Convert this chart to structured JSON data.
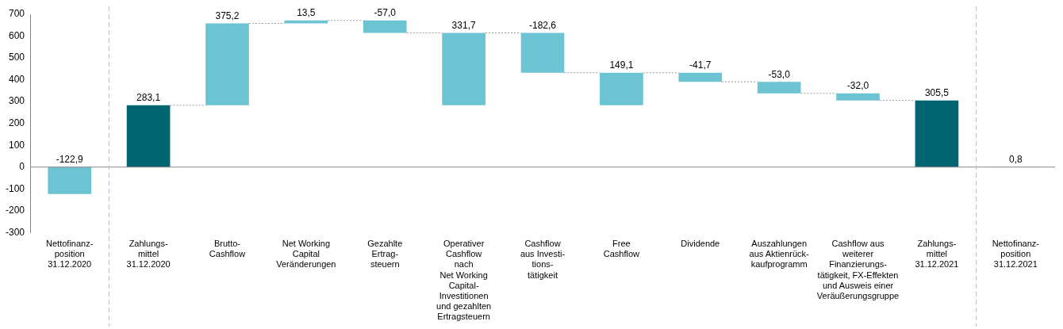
{
  "chart_data": {
    "type": "bar",
    "categories": [
      "Nettofinanz-\nposition\n31.12.2020",
      "Zahlungs-\nmittel\n31.12.2020",
      "Brutto-\nCashflow",
      "Net Working\nCapital\nVeränderungen",
      "Gezahlte\nErtrag-\nsteuern",
      "Operativer\nCashflow\nnach\nNet Working\nCapital-\nInvestitionen\nund gezahlten\nErtragsteuern",
      "Cashflow\naus Investi-\ntions-\ntätigkeit",
      "Free\nCashflow",
      "Dividende",
      "Auszahlungen\naus Aktienrück-\nkaufprogramm",
      "Cashflow aus\nweiterer\nFinanzierungs-\ntätigkeit, FX-Effekten\nund Ausweis einer\nVeräußerungsgruppe",
      "Zahlungs-\nmittel\n31.12.2021",
      "Nettofinanz-\nposition\n31.12.2021"
    ],
    "values": [
      -122.9,
      283.1,
      375.2,
      13.5,
      -57.0,
      331.7,
      -182.6,
      149.1,
      -41.7,
      -53.0,
      -32.0,
      305.5,
      0.8
    ],
    "base": [
      0,
      0,
      283.1,
      658.3,
      671.8,
      283.1,
      614.8,
      283.1,
      432.2,
      390.5,
      337.5,
      0,
      0
    ],
    "colors": [
      "#6cc3d1",
      "#006570",
      "#6cc3d1",
      "#6cc3d1",
      "#6cc3d1",
      "#6cc3d1",
      "#6cc3d1",
      "#6cc3d1",
      "#6cc3d1",
      "#6cc3d1",
      "#6cc3d1",
      "#006570",
      "#6cc3d1"
    ],
    "value_labels": [
      "-122,9",
      "283,1",
      "375,2",
      "13,5",
      "-57,0",
      "331,7",
      "-182,6",
      "149,1",
      "-41,7",
      "-53,0",
      "-32,0",
      "305,5",
      "0,8"
    ],
    "ylim": [
      -300,
      700
    ],
    "yticks": [
      -300,
      -200,
      -100,
      0,
      100,
      200,
      300,
      400,
      500,
      600,
      700
    ],
    "grid": false,
    "legend": false
  }
}
